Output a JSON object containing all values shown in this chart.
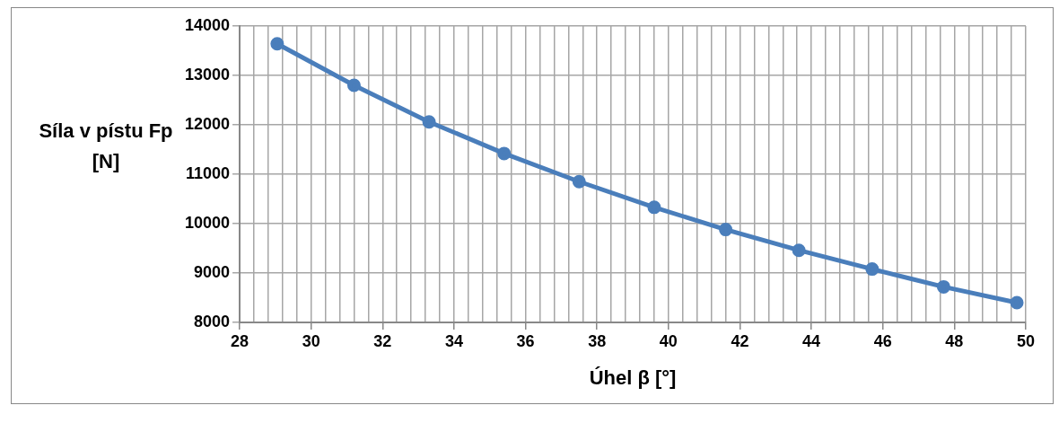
{
  "chart_data": {
    "type": "line",
    "xlabel": "Úhel β [°]",
    "ylabel": "Síla v pístu Fp [N]",
    "x": [
      29.05,
      31.2,
      33.3,
      35.4,
      37.5,
      39.6,
      41.6,
      43.65,
      45.7,
      47.7,
      49.75
    ],
    "series": [
      {
        "color": "#4a7ebb",
        "values": [
          13640,
          12800,
          12060,
          11420,
          10850,
          10330,
          9880,
          9460,
          9080,
          8720,
          8400
        ]
      }
    ],
    "xlim": [
      28,
      50
    ],
    "xticks": [
      28,
      {
        "value": 28.4,
        "label": null
      },
      {
        "value": 28.8,
        "label": null
      },
      {
        "value": 29.2,
        "label": null
      },
      {
        "value": 29.6,
        "label": null
      },
      30,
      {
        "value": 30.4,
        "label": null
      },
      {
        "value": 30.8,
        "label": null
      },
      {
        "value": 31.2,
        "label": null
      },
      {
        "value": 31.6,
        "label": null
      },
      32,
      {
        "value": 32.4,
        "label": null
      },
      {
        "value": 32.8,
        "label": null
      },
      {
        "value": 33.2,
        "label": null
      },
      {
        "value": 33.6,
        "label": null
      },
      34,
      {
        "value": 34.4,
        "label": null
      },
      {
        "value": 34.8,
        "label": null
      },
      {
        "value": 35.2,
        "label": null
      },
      {
        "value": 35.6,
        "label": null
      },
      36,
      {
        "value": 36.4,
        "label": null
      },
      {
        "value": 36.8,
        "label": null
      },
      {
        "value": 37.2,
        "label": null
      },
      {
        "value": 37.6,
        "label": null
      },
      38,
      {
        "value": 38.4,
        "label": null
      },
      {
        "value": 38.8,
        "label": null
      },
      {
        "value": 39.2,
        "label": null
      },
      {
        "value": 39.6,
        "label": null
      },
      40,
      {
        "value": 40.4,
        "label": null
      },
      {
        "value": 40.8,
        "label": null
      },
      {
        "value": 41.2,
        "label": null
      },
      {
        "value": 41.6,
        "label": null
      },
      42,
      {
        "value": 42.4,
        "label": null
      },
      {
        "value": 42.8,
        "label": null
      },
      {
        "value": 43.2,
        "label": null
      },
      {
        "value": 43.6,
        "label": null
      },
      44,
      {
        "value": 44.4,
        "label": null
      },
      {
        "value": 44.8,
        "label": null
      },
      {
        "value": 45.2,
        "label": null
      },
      {
        "value": 45.6,
        "label": null
      },
      46,
      {
        "value": 46.4,
        "label": null
      },
      {
        "value": 46.8,
        "label": null
      },
      {
        "value": 47.2,
        "label": null
      },
      {
        "value": 47.6,
        "label": null
      },
      48,
      {
        "value": 48.4,
        "label": null
      },
      {
        "value": 48.8,
        "label": null
      },
      {
        "value": 49.2,
        "label": null
      },
      {
        "value": 49.6,
        "label": null
      },
      50
    ],
    "ylim": [
      8000,
      14000
    ],
    "yticks": [
      8000,
      9000,
      10000,
      11000,
      12000,
      13000,
      14000
    ],
    "grid": true,
    "marker": "circle",
    "line_style": "solid"
  }
}
